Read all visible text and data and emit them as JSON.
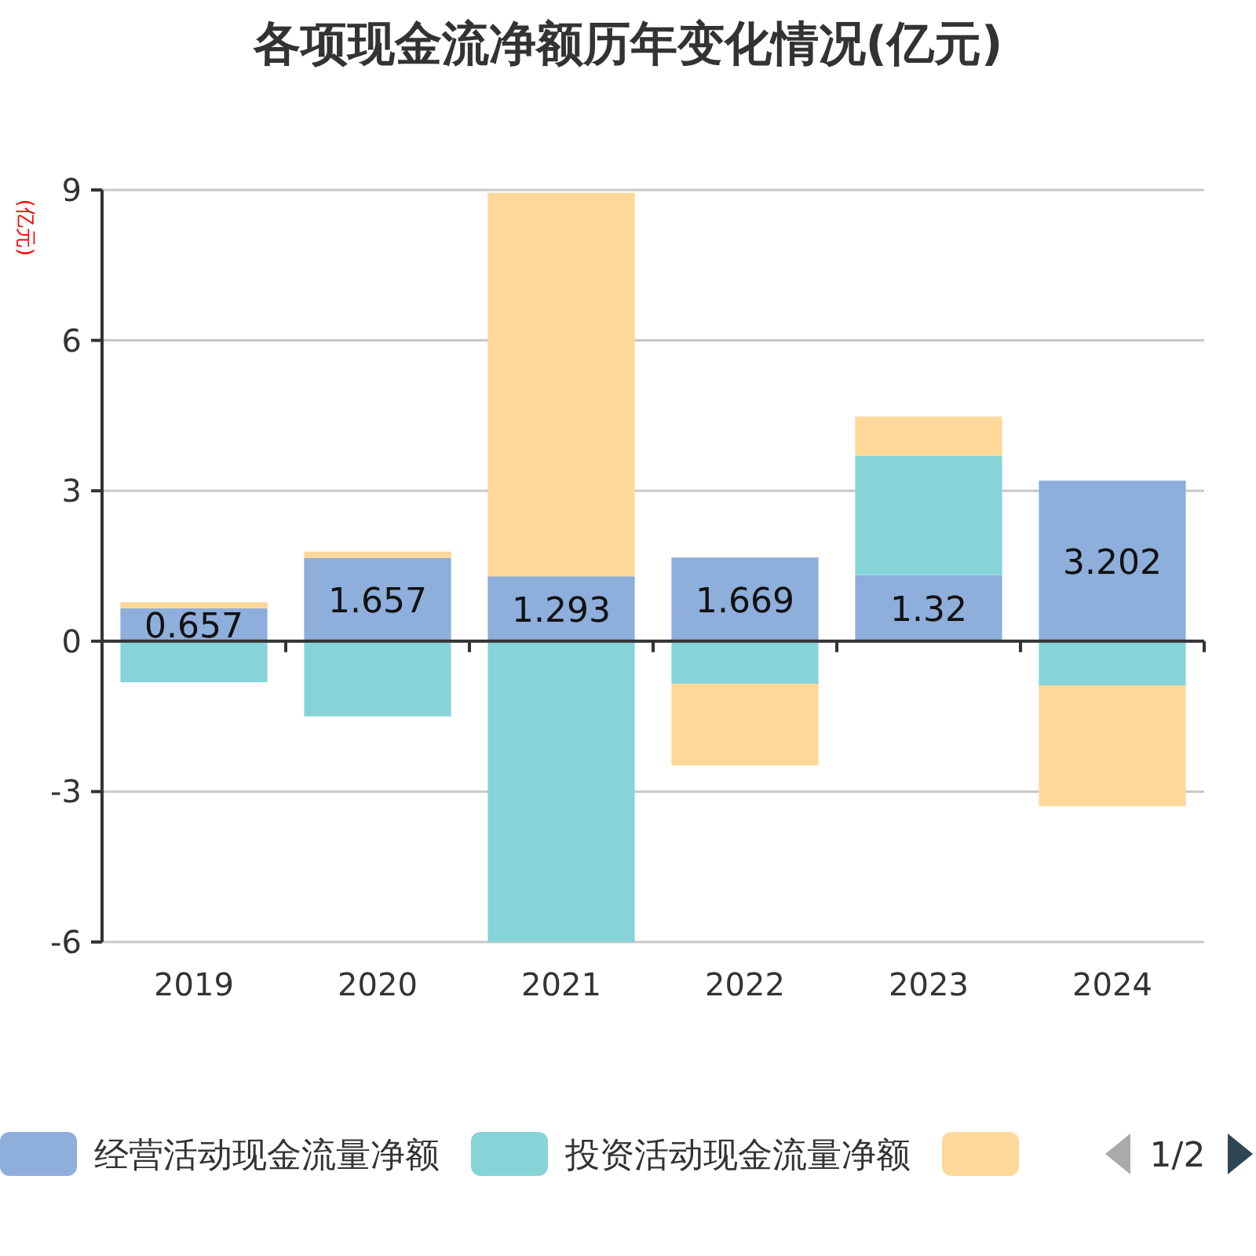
{
  "chart_data": {
    "type": "bar",
    "title": "各项现金流净额历年变化情况(亿元)",
    "ylabel": "(亿元)",
    "stacked": true,
    "grid": "y",
    "legend": "bottom",
    "ylim": [
      -6,
      9
    ],
    "yticks": [
      -6,
      -3,
      0,
      3,
      6,
      9
    ],
    "categories": [
      "2019",
      "2020",
      "2021",
      "2022",
      "2023",
      "2024"
    ],
    "series": [
      {
        "name": "经营活动现金流量净额",
        "color": "#8eaedb",
        "values": [
          0.657,
          1.657,
          1.293,
          1.669,
          1.32,
          3.202
        ],
        "value_labels": [
          "0.657",
          "1.657",
          "1.293",
          "1.669",
          "1.32",
          "3.202"
        ]
      },
      {
        "name": "投资活动现金流量净额",
        "color": "#87d4d8",
        "values": [
          -0.82,
          -1.5,
          -6.0,
          -0.85,
          2.38,
          -0.88
        ]
      },
      {
        "color": "#fed899",
        "values": [
          0.12,
          0.13,
          7.65,
          -1.63,
          0.78,
          -2.41
        ]
      }
    ],
    "annotations": [
      "1/2"
    ]
  }
}
